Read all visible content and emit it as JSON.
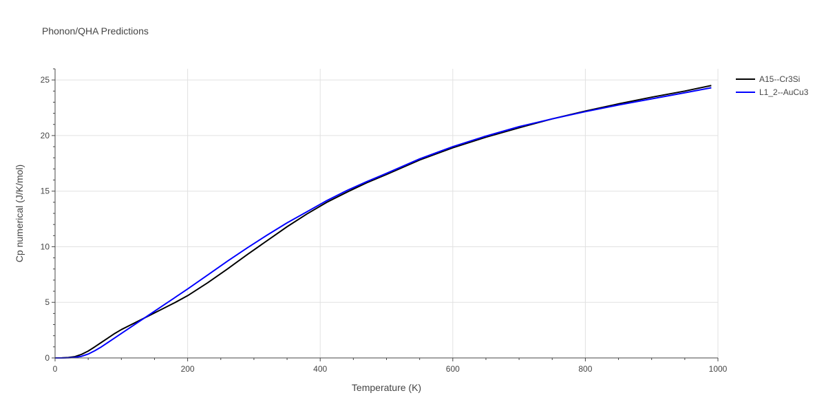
{
  "chart_data": {
    "type": "line",
    "title": "Phonon/QHA Predictions",
    "xlabel": "Temperature (K)",
    "ylabel": "Cp numerical (J/K/mol)",
    "xlim": [
      0,
      1000
    ],
    "ylim": [
      0,
      26
    ],
    "xticks": [
      0,
      200,
      400,
      600,
      800,
      1000
    ],
    "yticks": [
      0,
      5,
      10,
      15,
      20,
      25
    ],
    "grid": true,
    "legend_position": "top-right",
    "series": [
      {
        "name": "A15--Cr3Si",
        "color": "#000000",
        "x": [
          0,
          10,
          20,
          30,
          40,
          50,
          60,
          70,
          80,
          90,
          100,
          120,
          140,
          160,
          180,
          200,
          230,
          260,
          290,
          320,
          350,
          380,
          410,
          440,
          470,
          500,
          550,
          600,
          650,
          700,
          750,
          800,
          850,
          900,
          950,
          990
        ],
        "y": [
          0,
          0.01,
          0.04,
          0.12,
          0.32,
          0.62,
          1.0,
          1.4,
          1.8,
          2.2,
          2.55,
          3.15,
          3.75,
          4.35,
          4.95,
          5.6,
          6.75,
          8.0,
          9.3,
          10.55,
          11.8,
          12.95,
          14.0,
          14.9,
          15.75,
          16.5,
          17.8,
          18.9,
          19.85,
          20.7,
          21.5,
          22.2,
          22.85,
          23.45,
          24.0,
          24.5
        ]
      },
      {
        "name": "L1_2--AuCu3",
        "color": "#0000ff",
        "x": [
          0,
          10,
          20,
          30,
          40,
          50,
          60,
          70,
          80,
          90,
          100,
          120,
          140,
          160,
          180,
          200,
          230,
          260,
          290,
          320,
          350,
          380,
          410,
          440,
          470,
          500,
          550,
          600,
          650,
          700,
          750,
          800,
          850,
          900,
          950,
          990
        ],
        "y": [
          0,
          0.003,
          0.012,
          0.05,
          0.15,
          0.35,
          0.65,
          1.0,
          1.4,
          1.8,
          2.2,
          3.0,
          3.8,
          4.6,
          5.4,
          6.2,
          7.45,
          8.7,
          9.9,
          11.05,
          12.15,
          13.15,
          14.15,
          15.05,
          15.85,
          16.6,
          17.9,
          19.0,
          19.95,
          20.8,
          21.5,
          22.15,
          22.75,
          23.3,
          23.85,
          24.3
        ]
      }
    ]
  }
}
